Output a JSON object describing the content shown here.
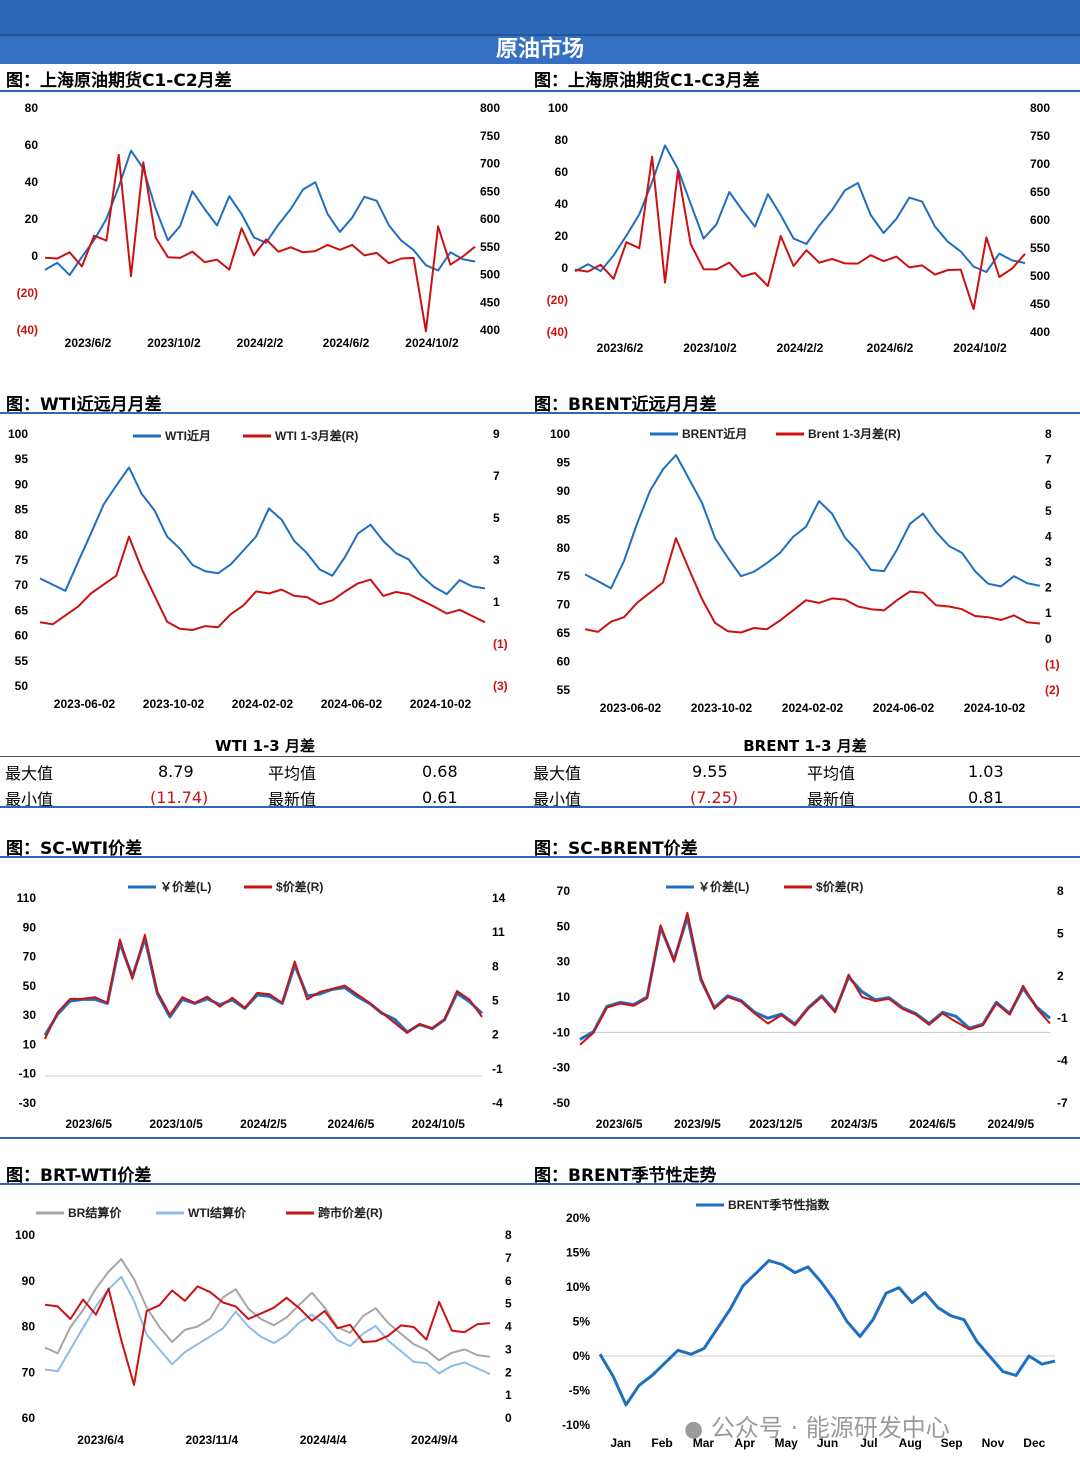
{
  "banner": "原油市场",
  "chart_data": [
    {
      "type": "line",
      "title": "图：上海原油期货C1-C2月差",
      "xticks": [
        "2023/6/2",
        "2023/10/2",
        "2024/2/2",
        "2024/6/2",
        "2024/10/2"
      ],
      "yl_ticks": [
        "80",
        "60",
        "40",
        "20",
        "0",
        "(20)",
        "(40)"
      ],
      "yr_ticks": [
        "800",
        "750",
        "700",
        "650",
        "600",
        "550",
        "500",
        "450",
        "400"
      ],
      "series": [
        {
          "color": "#1f6fbf",
          "axis": "right",
          "values": [
            505,
            520,
            500,
            535,
            560,
            600,
            660,
            720,
            690,
            620,
            565,
            585,
            650,
            620,
            585,
            640,
            610,
            570,
            555,
            590,
            620,
            650,
            665,
            610,
            580,
            600,
            640,
            635,
            585,
            560,
            545,
            520,
            505,
            540,
            530,
            520
          ]
        },
        {
          "color": "#cc1111",
          "axis": "left",
          "values": [
            0,
            -2,
            2,
            -5,
            10,
            8,
            55,
            -10,
            50,
            10,
            0,
            -2,
            2,
            -3,
            -1,
            -8,
            15,
            1,
            8,
            2,
            5,
            3,
            2,
            6,
            4,
            5,
            0,
            2,
            -3,
            -2,
            -1,
            -40,
            15,
            -5,
            0,
            6
          ]
        }
      ]
    },
    {
      "type": "line",
      "title": "图：上海原油期货C1-C3月差",
      "xticks": [
        "2023/6/2",
        "2023/10/2",
        "2024/2/2",
        "2024/6/2",
        "2024/10/2"
      ],
      "yl_ticks": [
        "100",
        "80",
        "60",
        "40",
        "20",
        "0",
        "(20)",
        "(40)"
      ],
      "yr_ticks": [
        "800",
        "750",
        "700",
        "650",
        "600",
        "550",
        "500",
        "450",
        "400"
      ],
      "series": [
        {
          "color": "#1f6fbf",
          "axis": "right",
          "values": [
            505,
            520,
            510,
            540,
            570,
            610,
            670,
            730,
            690,
            630,
            570,
            590,
            650,
            620,
            585,
            645,
            610,
            570,
            555,
            590,
            620,
            650,
            665,
            610,
            580,
            600,
            640,
            635,
            585,
            560,
            545,
            520,
            505,
            540,
            530,
            520
          ]
        },
        {
          "color": "#cc1111",
          "axis": "left",
          "values": [
            0,
            -3,
            2,
            -6,
            15,
            12,
            70,
            -8,
            60,
            15,
            0,
            -2,
            3,
            -5,
            -2,
            -12,
            20,
            2,
            10,
            3,
            6,
            4,
            2,
            8,
            5,
            6,
            0,
            2,
            -3,
            -2,
            -1,
            -25,
            18,
            -6,
            0,
            10
          ]
        }
      ]
    },
    {
      "type": "line",
      "title": "图：WTI近远月月差",
      "legend": [
        "WTI近月",
        "WTI 1-3月差(R)"
      ],
      "xticks": [
        "2023-06-02",
        "2023-10-02",
        "2024-02-02",
        "2024-06-02",
        "2024-10-02"
      ],
      "yl_ticks": [
        "100",
        "95",
        "90",
        "85",
        "80",
        "75",
        "70",
        "65",
        "60",
        "55",
        "50"
      ],
      "yr_ticks": [
        "9",
        "7",
        "5",
        "3",
        "1",
        "(1)",
        "(3)"
      ],
      "series": [
        {
          "color": "#1f6fbf",
          "axis": "left",
          "values": [
            71,
            70,
            69,
            75,
            80,
            86,
            90,
            93,
            88,
            85,
            80,
            77,
            74,
            73,
            72,
            74,
            77,
            80,
            85,
            83,
            79,
            76,
            73,
            72,
            76,
            80,
            82,
            79,
            76,
            75,
            72,
            70,
            68,
            71,
            70,
            69
          ]
        },
        {
          "color": "#cc1111",
          "axis": "left",
          "values": [
            63,
            62,
            64,
            66,
            68,
            70,
            72,
            80,
            73,
            68,
            63,
            61,
            61,
            62,
            62,
            64,
            66,
            69,
            68,
            69,
            68,
            68,
            66,
            67,
            69,
            70,
            71,
            68,
            69,
            68,
            67,
            66,
            64,
            65,
            64,
            63
          ]
        }
      ]
    },
    {
      "type": "line",
      "title": "图：BRENT近远月月差",
      "legend": [
        "BRENT近月",
        "Brent 1-3月差(R)"
      ],
      "xticks": [
        "2023-06-02",
        "2023-10-02",
        "2024-02-02",
        "2024-06-02",
        "2024-10-02"
      ],
      "yl_ticks": [
        "100",
        "95",
        "90",
        "85",
        "80",
        "75",
        "70",
        "65",
        "60",
        "55"
      ],
      "yr_ticks": [
        "8",
        "7",
        "6",
        "5",
        "4",
        "3",
        "2",
        "1",
        "0",
        "(1)",
        "(2)"
      ],
      "series": [
        {
          "color": "#1f6fbf",
          "axis": "left",
          "values": [
            75,
            74,
            73,
            78,
            84,
            90,
            94,
            96,
            92,
            88,
            82,
            78,
            75,
            76,
            77,
            79,
            82,
            84,
            88,
            86,
            82,
            79,
            76,
            76,
            80,
            84,
            86,
            83,
            80,
            79,
            76,
            74,
            73,
            75,
            74,
            73
          ]
        },
        {
          "color": "#cc1111",
          "axis": "left",
          "values": [
            66,
            65,
            67,
            68,
            70,
            72,
            74,
            82,
            76,
            71,
            67,
            65,
            65,
            66,
            66,
            67,
            69,
            71,
            70,
            71,
            71,
            70,
            69,
            69,
            71,
            72,
            72,
            70,
            70,
            69,
            68,
            68,
            67,
            68,
            67,
            67
          ]
        }
      ]
    },
    {
      "type": "line",
      "title": "图：SC-WTI价差",
      "legend": [
        "￥价差(L)",
        "$价差(R)"
      ],
      "xticks": [
        "2023/6/5",
        "2023/10/5",
        "2024/2/5",
        "2024/6/5",
        "2024/10/5"
      ],
      "yl_ticks": [
        "110",
        "90",
        "70",
        "50",
        "30",
        "10",
        "-10",
        "-30"
      ],
      "yr_ticks": [
        "14",
        "11",
        "8",
        "5",
        "2",
        "-1",
        "-4"
      ],
      "series": [
        {
          "color": "#1f6fbf",
          "axis": "left",
          "values": [
            15,
            30,
            40,
            42,
            40,
            38,
            80,
            55,
            82,
            45,
            30,
            40,
            38,
            42,
            36,
            40,
            35,
            45,
            42,
            38,
            65,
            42,
            44,
            48,
            50,
            42,
            38,
            32,
            26,
            18,
            24,
            22,
            26,
            45,
            40,
            30
          ]
        },
        {
          "color": "#cc1111",
          "axis": "left",
          "values": [
            15,
            31,
            41,
            42,
            41,
            38,
            82,
            56,
            84,
            46,
            31,
            41,
            38,
            43,
            37,
            41,
            35,
            46,
            43,
            38,
            67,
            42,
            45,
            48,
            51,
            43,
            38,
            32,
            26,
            17,
            24,
            22,
            26,
            46,
            41,
            30
          ]
        }
      ]
    },
    {
      "type": "line",
      "title": "图：SC-BRENT价差",
      "legend": [
        "￥价差(L)",
        "$价差(R)"
      ],
      "xticks": [
        "2023/6/5",
        "2023/9/5",
        "2023/12/5",
        "2024/3/5",
        "2024/6/5",
        "2024/9/5"
      ],
      "yl_ticks": [
        "70",
        "50",
        "30",
        "10",
        "-10",
        "-30",
        "-50"
      ],
      "yr_ticks": [
        "8",
        "5",
        "2",
        "-1",
        "-4",
        "-7"
      ],
      "series": [
        {
          "color": "#1f6fbf",
          "axis": "left",
          "values": [
            -15,
            -10,
            5,
            8,
            5,
            10,
            50,
            30,
            55,
            20,
            5,
            10,
            8,
            2,
            -3,
            0,
            -5,
            5,
            10,
            2,
            22,
            12,
            8,
            10,
            5,
            0,
            -5,
            2,
            -2,
            -8,
            -5,
            8,
            0,
            15,
            5,
            -3
          ]
        },
        {
          "color": "#cc1111",
          "axis": "left",
          "values": [
            -16,
            -11,
            4,
            7,
            4,
            9,
            51,
            31,
            57,
            21,
            4,
            9,
            7,
            1,
            -4,
            -1,
            -6,
            4,
            9,
            1,
            23,
            11,
            7,
            9,
            4,
            -1,
            -6,
            1,
            -3,
            -9,
            -6,
            7,
            -1,
            16,
            4,
            -4
          ]
        }
      ]
    },
    {
      "type": "line",
      "title": "图：BRT-WTI价差",
      "legend": [
        "BR结算价",
        "WTI结算价",
        "跨市价差(R)"
      ],
      "xticks": [
        "2023/6/4",
        "2023/11/4",
        "2024/4/4",
        "2024/9/4"
      ],
      "yl_ticks": [
        "100",
        "90",
        "80",
        "70",
        "60"
      ],
      "yr_ticks": [
        "8",
        "7",
        "6",
        "5",
        "4",
        "3",
        "2",
        "1",
        "0"
      ],
      "series": [
        {
          "color": "#a6a6a6",
          "axis": "left",
          "values": [
            75,
            74,
            80,
            84,
            88,
            92,
            95,
            90,
            84,
            80,
            77,
            79,
            80,
            82,
            86,
            88,
            84,
            82,
            80,
            82,
            85,
            87,
            84,
            80,
            79,
            82,
            84,
            81,
            78,
            76,
            75,
            73,
            74,
            75,
            74,
            73
          ]
        },
        {
          "color": "#8fbbe8",
          "axis": "left",
          "values": [
            71,
            70,
            75,
            80,
            84,
            88,
            91,
            86,
            78,
            75,
            72,
            74,
            76,
            78,
            80,
            83,
            80,
            78,
            76,
            78,
            81,
            83,
            80,
            77,
            76,
            78,
            80,
            77,
            75,
            72,
            72,
            70,
            71,
            72,
            71,
            70
          ]
        },
        {
          "color": "#cc1111",
          "axis": "right",
          "values": [
            5,
            4.8,
            4.3,
            5.2,
            4.6,
            5.6,
            3.4,
            1.5,
            4.6,
            4.9,
            5.6,
            5.2,
            5.7,
            5.5,
            5.1,
            4.8,
            4.3,
            4.6,
            4.9,
            5.2,
            4.8,
            4.3,
            4.6,
            3.9,
            4.1,
            3.4,
            3.3,
            3.6,
            4.1,
            3.9,
            3.4,
            5.1,
            3.9,
            3.7,
            4.1,
            4.2
          ]
        }
      ]
    },
    {
      "type": "line",
      "title": "图：BRENT季节性走势",
      "legend": [
        "BRENT季节性指数"
      ],
      "xticks": [
        "Jan",
        "Feb",
        "Mar",
        "Apr",
        "May",
        "Jun",
        "Jul",
        "Aug",
        "Sep",
        "Nov",
        "Dec"
      ],
      "yl_ticks": [
        "20%",
        "15%",
        "10%",
        "5%",
        "0%",
        "-5%",
        "-10%"
      ],
      "series": [
        {
          "color": "#1f6fbf",
          "axis": "left",
          "values": [
            0,
            -3,
            -7,
            -4,
            -3,
            -1,
            1,
            0,
            1,
            4,
            7,
            10,
            12,
            14,
            13,
            12,
            13,
            11,
            8,
            5,
            3,
            5,
            9,
            10,
            8,
            9,
            7,
            6,
            5,
            2,
            0,
            -2,
            -3,
            0,
            -1,
            -1
          ]
        }
      ]
    }
  ],
  "stats": {
    "wti": {
      "title": "WTI 1-3 月差",
      "max_label": "最大值",
      "max": "8.79",
      "min_label": "最小值",
      "min": "(11.74)",
      "avg_label": "平均值",
      "avg": "0.68",
      "latest_label": "最新值",
      "latest": "0.61"
    },
    "brent": {
      "title": "BRENT 1-3 月差",
      "max_label": "最大值",
      "max": "9.55",
      "min_label": "最小值",
      "min": "(7.25)",
      "avg_label": "平均值",
      "avg": "1.03",
      "latest_label": "最新值",
      "latest": "0.81"
    }
  },
  "watermark": "公众号 · 能源研发中心",
  "colors": {
    "accent": "#2f67b8",
    "blue": "#1f6fbf",
    "red": "#cc1111",
    "gray": "#a6a6a6",
    "lightblue": "#8fbbe8"
  }
}
